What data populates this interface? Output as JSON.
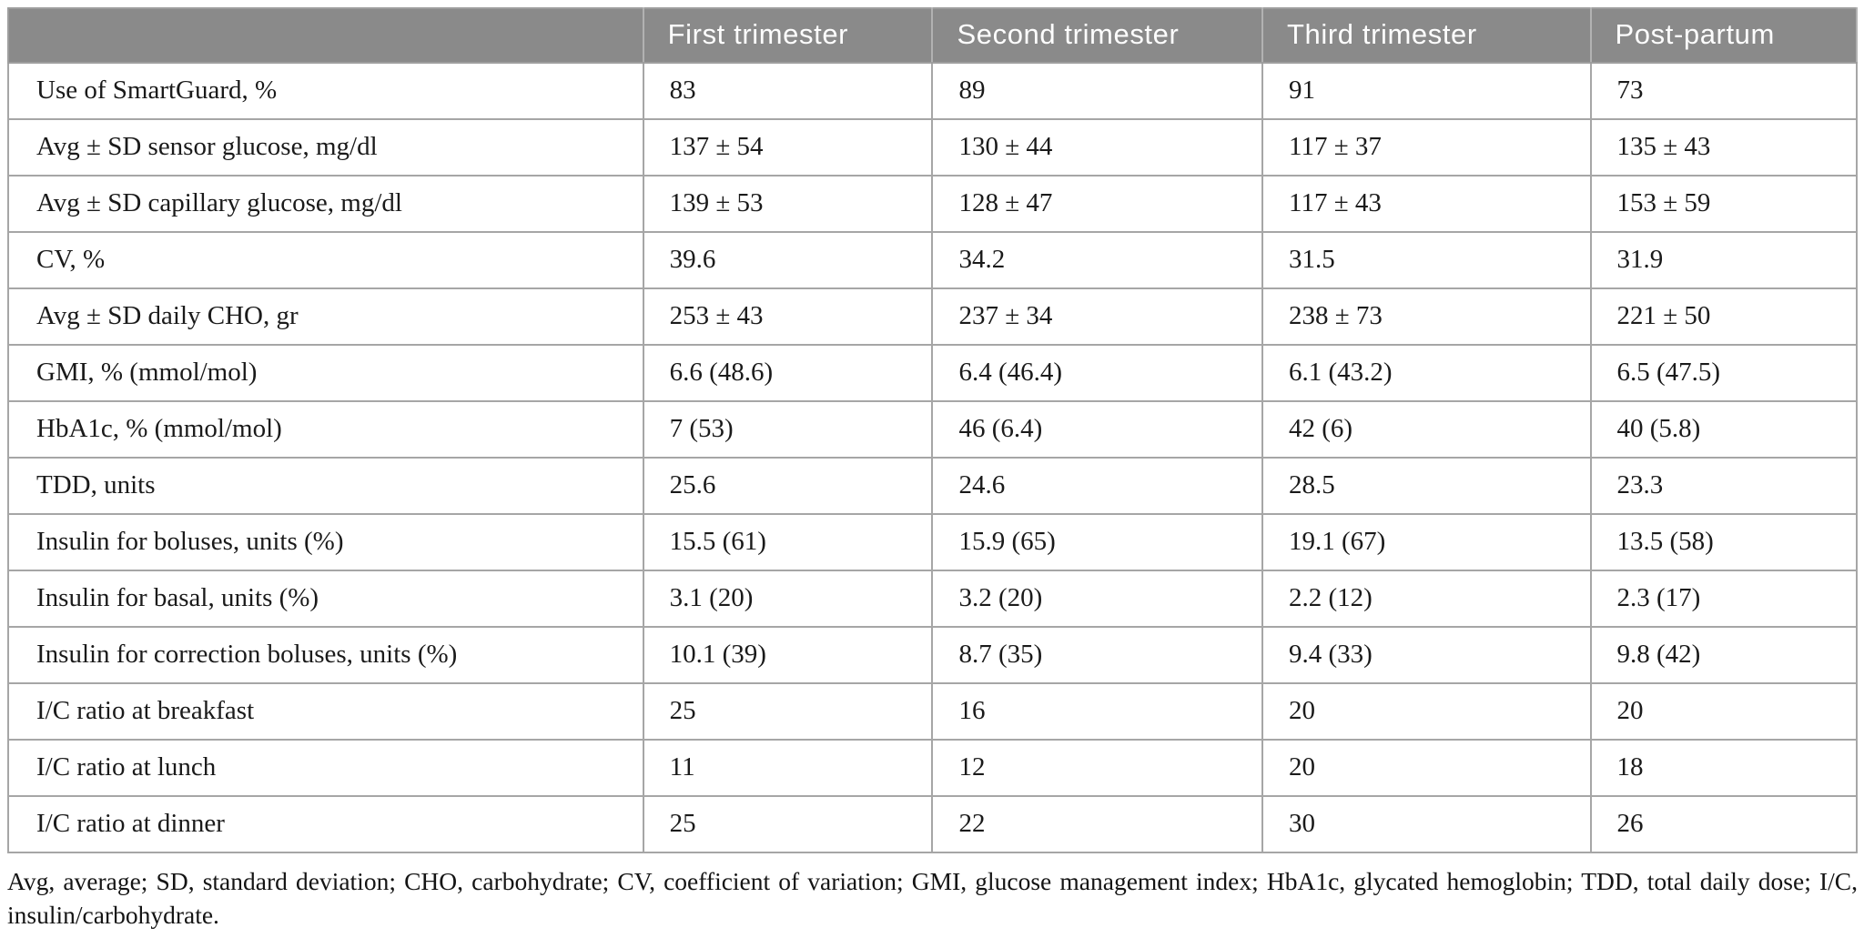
{
  "table": {
    "columns": [
      "",
      "First trimester",
      "Second trimester",
      "Third trimester",
      "Post-partum"
    ],
    "rows": [
      {
        "label": "Use of SmartGuard, %",
        "values": [
          "83",
          "89",
          "91",
          "73"
        ]
      },
      {
        "label": "Avg ± SD sensor glucose, mg/dl",
        "values": [
          "137 ± 54",
          "130 ± 44",
          "117 ± 37",
          "135 ± 43"
        ]
      },
      {
        "label": "Avg ± SD capillary glucose, mg/dl",
        "values": [
          "139 ± 53",
          "128 ± 47",
          "117 ± 43",
          "153 ± 59"
        ]
      },
      {
        "label": "CV, %",
        "values": [
          "39.6",
          "34.2",
          "31.5",
          "31.9"
        ]
      },
      {
        "label": "Avg ± SD daily CHO, gr",
        "values": [
          "253 ± 43",
          "237 ± 34",
          "238 ± 73",
          "221 ± 50"
        ]
      },
      {
        "label": "GMI, % (mmol/mol)",
        "values": [
          "6.6 (48.6)",
          "6.4 (46.4)",
          "6.1 (43.2)",
          "6.5 (47.5)"
        ]
      },
      {
        "label": "HbA1c, % (mmol/mol)",
        "values": [
          "7 (53)",
          "46 (6.4)",
          "42 (6)",
          "40 (5.8)"
        ]
      },
      {
        "label": "TDD, units",
        "values": [
          "25.6",
          "24.6",
          "28.5",
          "23.3"
        ]
      },
      {
        "label": "Insulin for boluses, units (%)",
        "values": [
          "15.5 (61)",
          "15.9 (65)",
          "19.1 (67)",
          "13.5 (58)"
        ]
      },
      {
        "label": "Insulin for basal, units (%)",
        "values": [
          "3.1 (20)",
          "3.2 (20)",
          "2.2 (12)",
          "2.3 (17)"
        ]
      },
      {
        "label": "Insulin for correction boluses, units (%)",
        "values": [
          "10.1 (39)",
          "8.7 (35)",
          "9.4 (33)",
          "9.8 (42)"
        ]
      },
      {
        "label": "I/C ratio at breakfast",
        "values": [
          "25",
          "16",
          "20",
          "20"
        ]
      },
      {
        "label": "I/C ratio at lunch",
        "values": [
          "11",
          "12",
          "20",
          "18"
        ]
      },
      {
        "label": "I/C ratio at dinner",
        "values": [
          "25",
          "22",
          "30",
          "26"
        ]
      }
    ],
    "footnote": "Avg, average; SD, standard deviation; CHO, carbohydrate; CV, coefficient of variation; GMI, glucose management index; HbA1c, glycated hemoglobin; TDD, total daily dose; I/C, insulin/carbohydrate."
  },
  "colors": {
    "header_bg": "#8a8a8a",
    "header_text": "#fdfdfd",
    "border": "#a6a6a6",
    "body_text": "#1a1a1a"
  }
}
